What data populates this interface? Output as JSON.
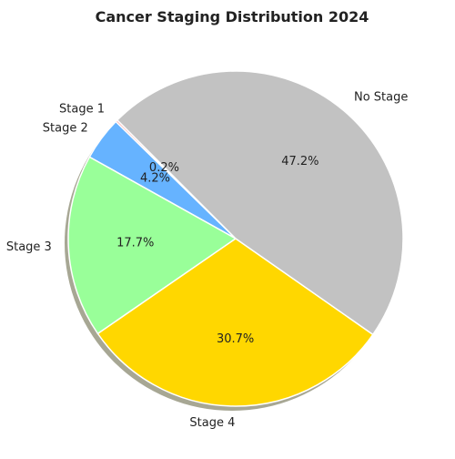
{
  "chart_data": {
    "type": "pie",
    "title": "Cancer Staging Distribution 2024",
    "categories": [
      "Stage 1",
      "Stage 2",
      "Stage 3",
      "Stage 4",
      "No Stage"
    ],
    "values": [
      0.2,
      4.2,
      17.7,
      30.7,
      47.2
    ],
    "value_labels": [
      "0.2%",
      "4.2%",
      "17.7%",
      "30.7%",
      "47.2%"
    ],
    "colors": [
      "#ff9999",
      "#66b3ff",
      "#99ff99",
      "#ffd700",
      "#c2c2c2"
    ],
    "start_angle_deg": 135,
    "direction": "counterclockwise",
    "shadow": true,
    "legend": "none"
  }
}
